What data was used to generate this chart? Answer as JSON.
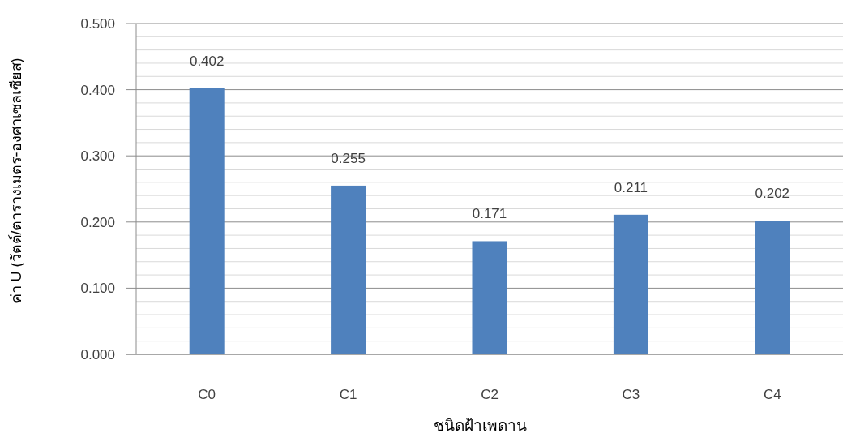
{
  "chart_data": {
    "type": "bar",
    "xlabel": "ชนิดฝ้าเพดาน",
    "ylabel": "ค่า U (วัตต์/ตารางเมตร-องศาเซลเซียส)",
    "categories": [
      "C0",
      "C1",
      "C2",
      "C3",
      "C4"
    ],
    "values": [
      0.402,
      0.255,
      0.171,
      0.211,
      0.202
    ],
    "color": "#4f81bd",
    "ylim": [
      0,
      0.5
    ],
    "yticks": [
      {
        "value": 0,
        "label": "0.000"
      },
      {
        "value": 0.02,
        "label": null
      },
      {
        "value": 0.04,
        "label": null
      },
      {
        "value": 0.06,
        "label": null
      },
      {
        "value": 0.08,
        "label": null
      },
      {
        "value": 0.1,
        "label": "0.100"
      },
      {
        "value": 0.12,
        "label": null
      },
      {
        "value": 0.14,
        "label": null
      },
      {
        "value": 0.16,
        "label": null
      },
      {
        "value": 0.18,
        "label": null
      },
      {
        "value": 0.2,
        "label": "0.200"
      },
      {
        "value": 0.22,
        "label": null
      },
      {
        "value": 0.24,
        "label": null
      },
      {
        "value": 0.26,
        "label": null
      },
      {
        "value": 0.28,
        "label": null
      },
      {
        "value": 0.3,
        "label": "0.300"
      },
      {
        "value": 0.32,
        "label": null
      },
      {
        "value": 0.34,
        "label": null
      },
      {
        "value": 0.36,
        "label": null
      },
      {
        "value": 0.38,
        "label": null
      },
      {
        "value": 0.4,
        "label": "0.400"
      },
      {
        "value": 0.42,
        "label": null
      },
      {
        "value": 0.44,
        "label": null
      },
      {
        "value": 0.46,
        "label": null
      },
      {
        "value": 0.48,
        "label": null
      },
      {
        "value": 0.5,
        "label": "0.500"
      }
    ],
    "grid": true,
    "data_labels": true
  }
}
